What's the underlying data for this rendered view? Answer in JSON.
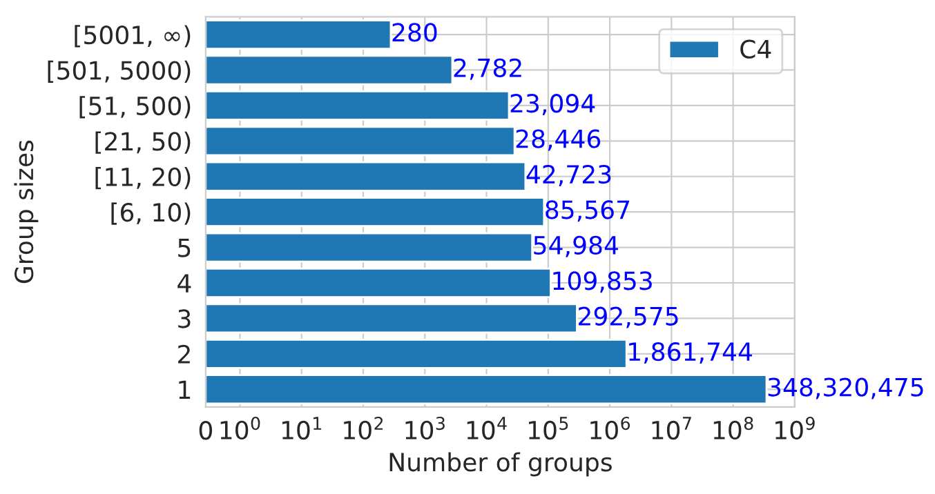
{
  "chart_data": {
    "type": "bar",
    "orientation": "horizontal",
    "xlabel": "Number of groups",
    "ylabel": "Group sizes",
    "categories": [
      "[5001, ∞)",
      "[501, 5000)",
      "[51, 500)",
      "[21, 50)",
      "[11, 20)",
      "[6, 10)",
      "5",
      "4",
      "3",
      "2",
      "1"
    ],
    "series": [
      {
        "name": "C4",
        "color": "#1f77b4",
        "values": [
          280,
          2782,
          23094,
          28446,
          42723,
          85567,
          54984,
          109853,
          292575,
          1861744,
          348320475
        ],
        "value_labels": [
          "280",
          "2,782",
          "23,094",
          "28,446",
          "42,723",
          "85,567",
          "54,984",
          "109,853",
          "292,575",
          "1,861,744",
          "348,320,475"
        ]
      }
    ],
    "log": "x",
    "xlim": [
      0,
      1000000000
    ],
    "xticks": [
      0,
      {
        "value": 1,
        "label": "10$^{0}$"
      },
      {
        "value": 10,
        "label": "10$^{1}$"
      },
      {
        "value": 100,
        "label": "10$^{2}$"
      },
      {
        "value": 1000,
        "label": "10$^{3}$"
      },
      {
        "value": 10000,
        "label": "10$^{4}$"
      },
      {
        "value": 100000,
        "label": "10$^{5}$"
      },
      {
        "value": 1000000,
        "label": "10$^{6}$"
      },
      {
        "value": 10000000,
        "label": "10$^{7}$"
      },
      {
        "value": 100000000,
        "label": "10$^{8}$"
      },
      {
        "value": 1000000000,
        "label": "10$^{9}$"
      }
    ],
    "grid": true,
    "legend": "top right"
  }
}
